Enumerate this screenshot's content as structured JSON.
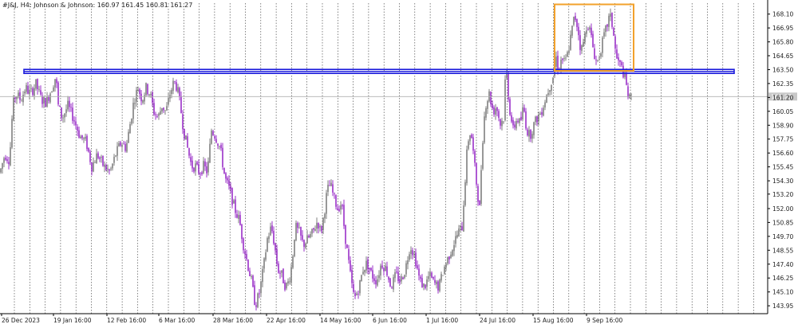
{
  "header": {
    "symbol_line": "#J&J, H4:  Johnson & Johnson:  160.97 161.45 160.81 161.27"
  },
  "colors": {
    "bull": "#7f7f7f",
    "bear": "#9b30c8",
    "grid": "#333333",
    "level": "#1a1adb",
    "box": "#f2a12b",
    "axis_text": "#222222",
    "price_tag_bg": "#c8c8c8"
  },
  "chart_data": {
    "type": "candlestick",
    "title": "#J&J, H4:  Johnson & Johnson:  160.97 161.45 160.81 161.27",
    "timeframe": "H4",
    "ylim": [
      143.3,
      169.0
    ],
    "y_ticks": [
      "168.10",
      "166.95",
      "165.80",
      "164.65",
      "163.50",
      "162.35",
      "161.20",
      "160.05",
      "158.90",
      "157.75",
      "156.60",
      "155.45",
      "154.30",
      "153.20",
      "152.00",
      "150.85",
      "149.70",
      "148.55",
      "147.40",
      "146.25",
      "145.10",
      "143.95"
    ],
    "x_ticks": [
      "26 Dec 2023",
      "19 Jan 16:00",
      "12 Feb 16:00",
      "6 Mar 16:00",
      "28 Mar 16:00",
      "22 Apr 16:00",
      "14 May 16:00",
      "6 Jun 16:00",
      "1 Jul 16:00",
      "24 Jul 16:00",
      "15 Aug 16:00",
      "9 Sep 16:00"
    ],
    "current_price": "161.27",
    "grid": "vertical dotted",
    "price_path": [
      [
        0,
        155.0
      ],
      [
        6,
        156.5
      ],
      [
        12,
        156.0
      ],
      [
        16,
        160.5
      ],
      [
        20,
        161.5
      ],
      [
        26,
        161.0
      ],
      [
        32,
        162.0
      ],
      [
        38,
        161.5
      ],
      [
        45,
        162.3
      ],
      [
        52,
        161.0
      ],
      [
        58,
        160.8
      ],
      [
        65,
        162.0
      ],
      [
        70,
        163.0
      ],
      [
        73,
        160.5
      ],
      [
        78,
        159.5
      ],
      [
        85,
        160.5
      ],
      [
        92,
        159.5
      ],
      [
        100,
        158.0
      ],
      [
        108,
        157.5
      ],
      [
        115,
        155.5
      ],
      [
        122,
        156.5
      ],
      [
        130,
        155.5
      ],
      [
        138,
        155.0
      ],
      [
        145,
        156.5
      ],
      [
        152,
        157.5
      ],
      [
        158,
        157.0
      ],
      [
        163,
        159.0
      ],
      [
        168,
        161.0
      ],
      [
        173,
        162.0
      ],
      [
        178,
        161.0
      ],
      [
        183,
        162.0
      ],
      [
        188,
        161.5
      ],
      [
        193,
        160.0
      ],
      [
        198,
        159.5
      ],
      [
        203,
        160.5
      ],
      [
        208,
        160.0
      ],
      [
        213,
        161.5
      ],
      [
        218,
        162.5
      ],
      [
        222,
        162.0
      ],
      [
        226,
        160.5
      ],
      [
        230,
        158.5
      ],
      [
        235,
        157.0
      ],
      [
        240,
        155.5
      ],
      [
        245,
        155.5
      ],
      [
        250,
        155.0
      ],
      [
        255,
        155.5
      ],
      [
        260,
        155.0
      ],
      [
        265,
        158.5
      ],
      [
        270,
        158.0
      ],
      [
        276,
        157.0
      ],
      [
        282,
        154.5
      ],
      [
        288,
        153.5
      ],
      [
        294,
        152.0
      ],
      [
        300,
        151.0
      ],
      [
        305,
        149.0
      ],
      [
        310,
        147.5
      ],
      [
        315,
        146.0
      ],
      [
        320,
        144.0
      ],
      [
        325,
        145.0
      ],
      [
        330,
        147.0
      ],
      [
        335,
        149.5
      ],
      [
        340,
        150.5
      ],
      [
        344,
        149.0
      ],
      [
        348,
        147.0
      ],
      [
        353,
        146.5
      ],
      [
        358,
        145.5
      ],
      [
        362,
        146.0
      ],
      [
        366,
        147.5
      ],
      [
        370,
        150.5
      ],
      [
        375,
        150.0
      ],
      [
        380,
        149.0
      ],
      [
        386,
        149.5
      ],
      [
        392,
        150.0
      ],
      [
        398,
        151.0
      ],
      [
        402,
        150.0
      ],
      [
        406,
        151.5
      ],
      [
        410,
        153.5
      ],
      [
        414,
        154.0
      ],
      [
        418,
        153.0
      ],
      [
        423,
        152.0
      ],
      [
        428,
        152.5
      ],
      [
        432,
        150.0
      ],
      [
        436,
        148.0
      ],
      [
        440,
        146.0
      ],
      [
        444,
        144.5
      ],
      [
        450,
        145.5
      ],
      [
        455,
        147.0
      ],
      [
        460,
        147.5
      ],
      [
        466,
        146.5
      ],
      [
        472,
        146.0
      ],
      [
        478,
        147.5
      ],
      [
        484,
        147.0
      ],
      [
        490,
        145.5
      ],
      [
        496,
        146.5
      ],
      [
        502,
        146.0
      ],
      [
        508,
        147.0
      ],
      [
        514,
        149.0
      ],
      [
        520,
        148.0
      ],
      [
        526,
        146.0
      ],
      [
        532,
        145.5
      ],
      [
        538,
        146.5
      ],
      [
        544,
        145.8
      ],
      [
        550,
        145.5
      ],
      [
        556,
        147.0
      ],
      [
        562,
        148.0
      ],
      [
        568,
        149.0
      ],
      [
        574,
        150.0
      ],
      [
        579,
        150.5
      ],
      [
        583,
        154.5
      ],
      [
        586,
        157.5
      ],
      [
        590,
        158.5
      ],
      [
        594,
        156.0
      ],
      [
        598,
        153.5
      ],
      [
        601,
        152.0
      ],
      [
        604,
        157.0
      ],
      [
        608,
        160.5
      ],
      [
        613,
        161.5
      ],
      [
        618,
        160.0
      ],
      [
        622,
        160.5
      ],
      [
        627,
        159.0
      ],
      [
        631,
        159.5
      ],
      [
        634,
        164.0
      ],
      [
        638,
        160.5
      ],
      [
        643,
        158.5
      ],
      [
        648,
        159.5
      ],
      [
        652,
        159.0
      ],
      [
        656,
        160.5
      ],
      [
        660,
        158.5
      ],
      [
        664,
        158.0
      ],
      [
        668,
        158.8
      ],
      [
        673,
        159.5
      ],
      [
        678,
        160.0
      ],
      [
        683,
        161.0
      ],
      [
        688,
        162.0
      ],
      [
        693,
        163.0
      ],
      [
        697,
        164.5
      ],
      [
        700,
        163.5
      ],
      [
        704,
        164.5
      ],
      [
        708,
        164.0
      ],
      [
        712,
        165.0
      ],
      [
        716,
        166.5
      ],
      [
        720,
        168.0
      ],
      [
        724,
        167.0
      ],
      [
        728,
        165.0
      ],
      [
        732,
        166.0
      ],
      [
        736,
        167.5
      ],
      [
        740,
        166.5
      ],
      [
        744,
        165.0
      ],
      [
        748,
        164.0
      ],
      [
        752,
        165.0
      ],
      [
        756,
        166.0
      ],
      [
        760,
        167.0
      ],
      [
        764,
        168.0
      ],
      [
        768,
        167.0
      ],
      [
        772,
        164.5
      ],
      [
        776,
        164.0
      ],
      [
        780,
        163.5
      ],
      [
        784,
        162.5
      ],
      [
        788,
        161.0
      ],
      [
        792,
        161.27
      ]
    ],
    "annotations": {
      "horizontal_level_price": 163.35,
      "range_box": {
        "x_start_bar": 695,
        "x_end_bar": 794,
        "price_top": 168.9,
        "price_bottom": 163.4
      }
    }
  }
}
